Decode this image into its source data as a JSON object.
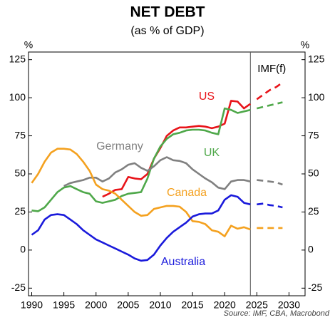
{
  "chart_data": {
    "type": "line",
    "title": "NET DEBT",
    "subtitle": "(as % of GDP)",
    "y_unit": "%",
    "source": "Source: IMF, CBA, Macrobond",
    "forecast_label": "IMF(f)",
    "forecast_start": 2024,
    "x": [
      1990,
      1991,
      1992,
      1993,
      1994,
      1995,
      1996,
      1997,
      1998,
      1999,
      2000,
      2001,
      2002,
      2003,
      2004,
      2005,
      2006,
      2007,
      2008,
      2009,
      2010,
      2011,
      2012,
      2013,
      2014,
      2015,
      2016,
      2017,
      2018,
      2019,
      2020,
      2021,
      2022,
      2023,
      2024,
      2025,
      2026,
      2027,
      2028,
      2029
    ],
    "xlim": [
      1989.5,
      2032.5
    ],
    "xticks": [
      1990,
      1995,
      2000,
      2005,
      2010,
      2015,
      2020,
      2025,
      2030
    ],
    "ylim": [
      -30,
      130
    ],
    "yticks": [
      -25,
      0,
      25,
      50,
      75,
      100,
      125
    ],
    "series": [
      {
        "name": "US",
        "color": "#e8141a",
        "values": [
          null,
          null,
          null,
          null,
          null,
          null,
          null,
          null,
          null,
          null,
          null,
          35,
          37,
          39.5,
          40,
          48,
          47,
          46.5,
          50,
          60,
          67,
          75,
          78.5,
          80.5,
          80.5,
          81,
          81.5,
          81,
          80,
          81,
          83,
          98,
          97.5,
          93,
          96,
          99,
          102,
          105,
          107,
          110
        ]
      },
      {
        "name": "UK",
        "color": "#4fa84a",
        "values": [
          26,
          25.5,
          28,
          33,
          38,
          41,
          42,
          40,
          38,
          37,
          32,
          31,
          32,
          33,
          35.5,
          37,
          37.5,
          38,
          47,
          60,
          68,
          73,
          76,
          77,
          78.5,
          79,
          79,
          78.5,
          77,
          76,
          93,
          92,
          90,
          91,
          92,
          93,
          94,
          95,
          96,
          97
        ]
      },
      {
        "name": "Germany",
        "color": "#808080",
        "values": [
          null,
          null,
          null,
          null,
          null,
          42,
          44,
          45,
          46,
          47.5,
          47.5,
          45,
          47,
          51,
          53,
          56,
          57,
          54,
          52,
          55,
          59,
          61,
          59,
          58.5,
          57,
          53,
          50,
          47,
          44.5,
          41,
          40,
          45,
          46,
          46,
          45,
          46,
          45.5,
          45,
          44.5,
          43
        ]
      },
      {
        "name": "Canada",
        "color": "#f4a11f",
        "values": [
          44,
          50,
          58,
          64,
          66.5,
          66.5,
          66,
          63,
          58,
          52,
          43,
          40,
          39,
          37,
          33,
          29,
          25,
          22.5,
          23,
          27,
          28,
          29,
          29,
          28.5,
          25,
          19,
          18.5,
          17,
          13,
          12,
          9,
          16,
          14,
          15,
          13.5,
          14.5,
          14.5,
          14.5,
          14.5,
          14.5
        ]
      },
      {
        "name": "Australia",
        "color": "#1a1adb",
        "values": [
          10,
          13,
          20,
          23,
          23.5,
          23,
          20,
          17,
          13,
          10,
          7,
          5,
          3,
          1,
          -1,
          -3,
          -5.5,
          -7,
          -6.5,
          -3,
          3,
          8,
          12,
          15,
          18,
          22,
          23.5,
          24,
          24,
          26,
          33,
          36,
          35,
          31,
          30,
          30,
          30.5,
          29.5,
          29,
          28
        ]
      }
    ]
  }
}
